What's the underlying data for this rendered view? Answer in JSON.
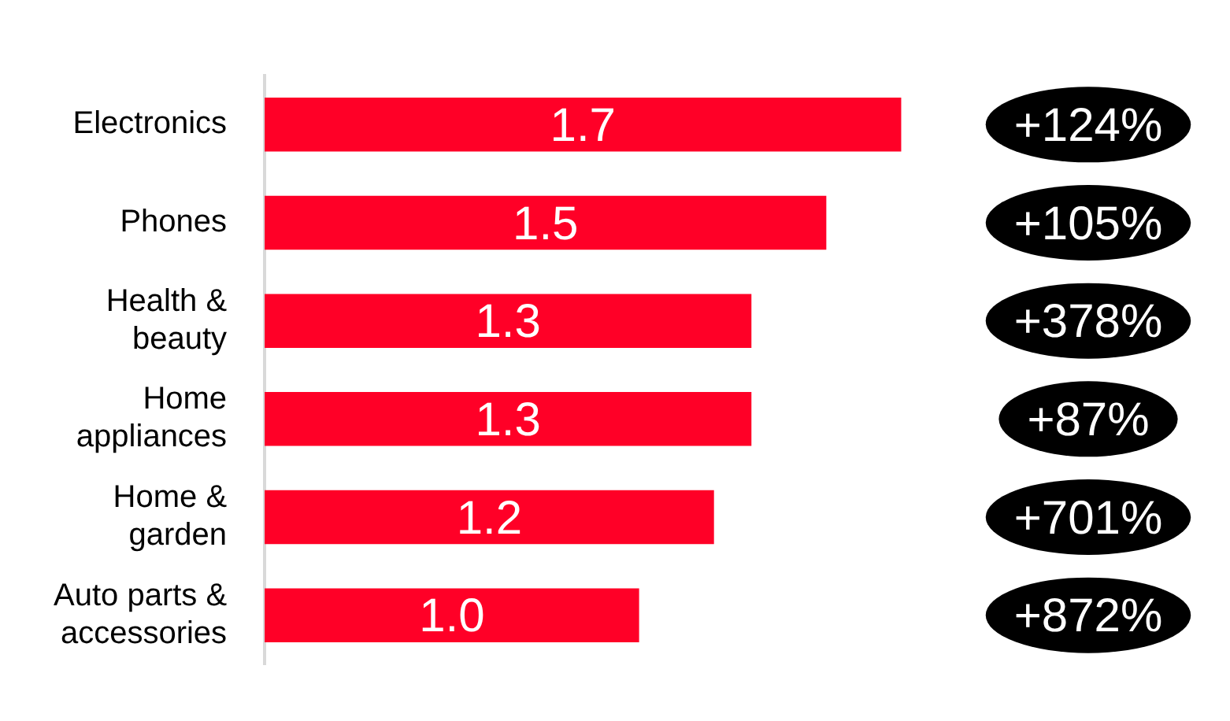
{
  "chart_data": {
    "type": "bar",
    "orientation": "horizontal",
    "categories": [
      "Electronics",
      "Phones",
      "Health & beauty",
      "Home appliances",
      "Home & garden",
      "Auto parts & accessories"
    ],
    "values": [
      1.7,
      1.5,
      1.3,
      1.3,
      1.2,
      1.0
    ],
    "value_labels": [
      "1.7",
      "1.5",
      "1.3",
      "1.3",
      "1.2",
      "1.0"
    ],
    "color": "#ff0027",
    "tick_labels": "y",
    "annotations": [
      "+124%",
      "+105%",
      "+378%",
      "+87%",
      "+701%",
      "+872%"
    ]
  }
}
